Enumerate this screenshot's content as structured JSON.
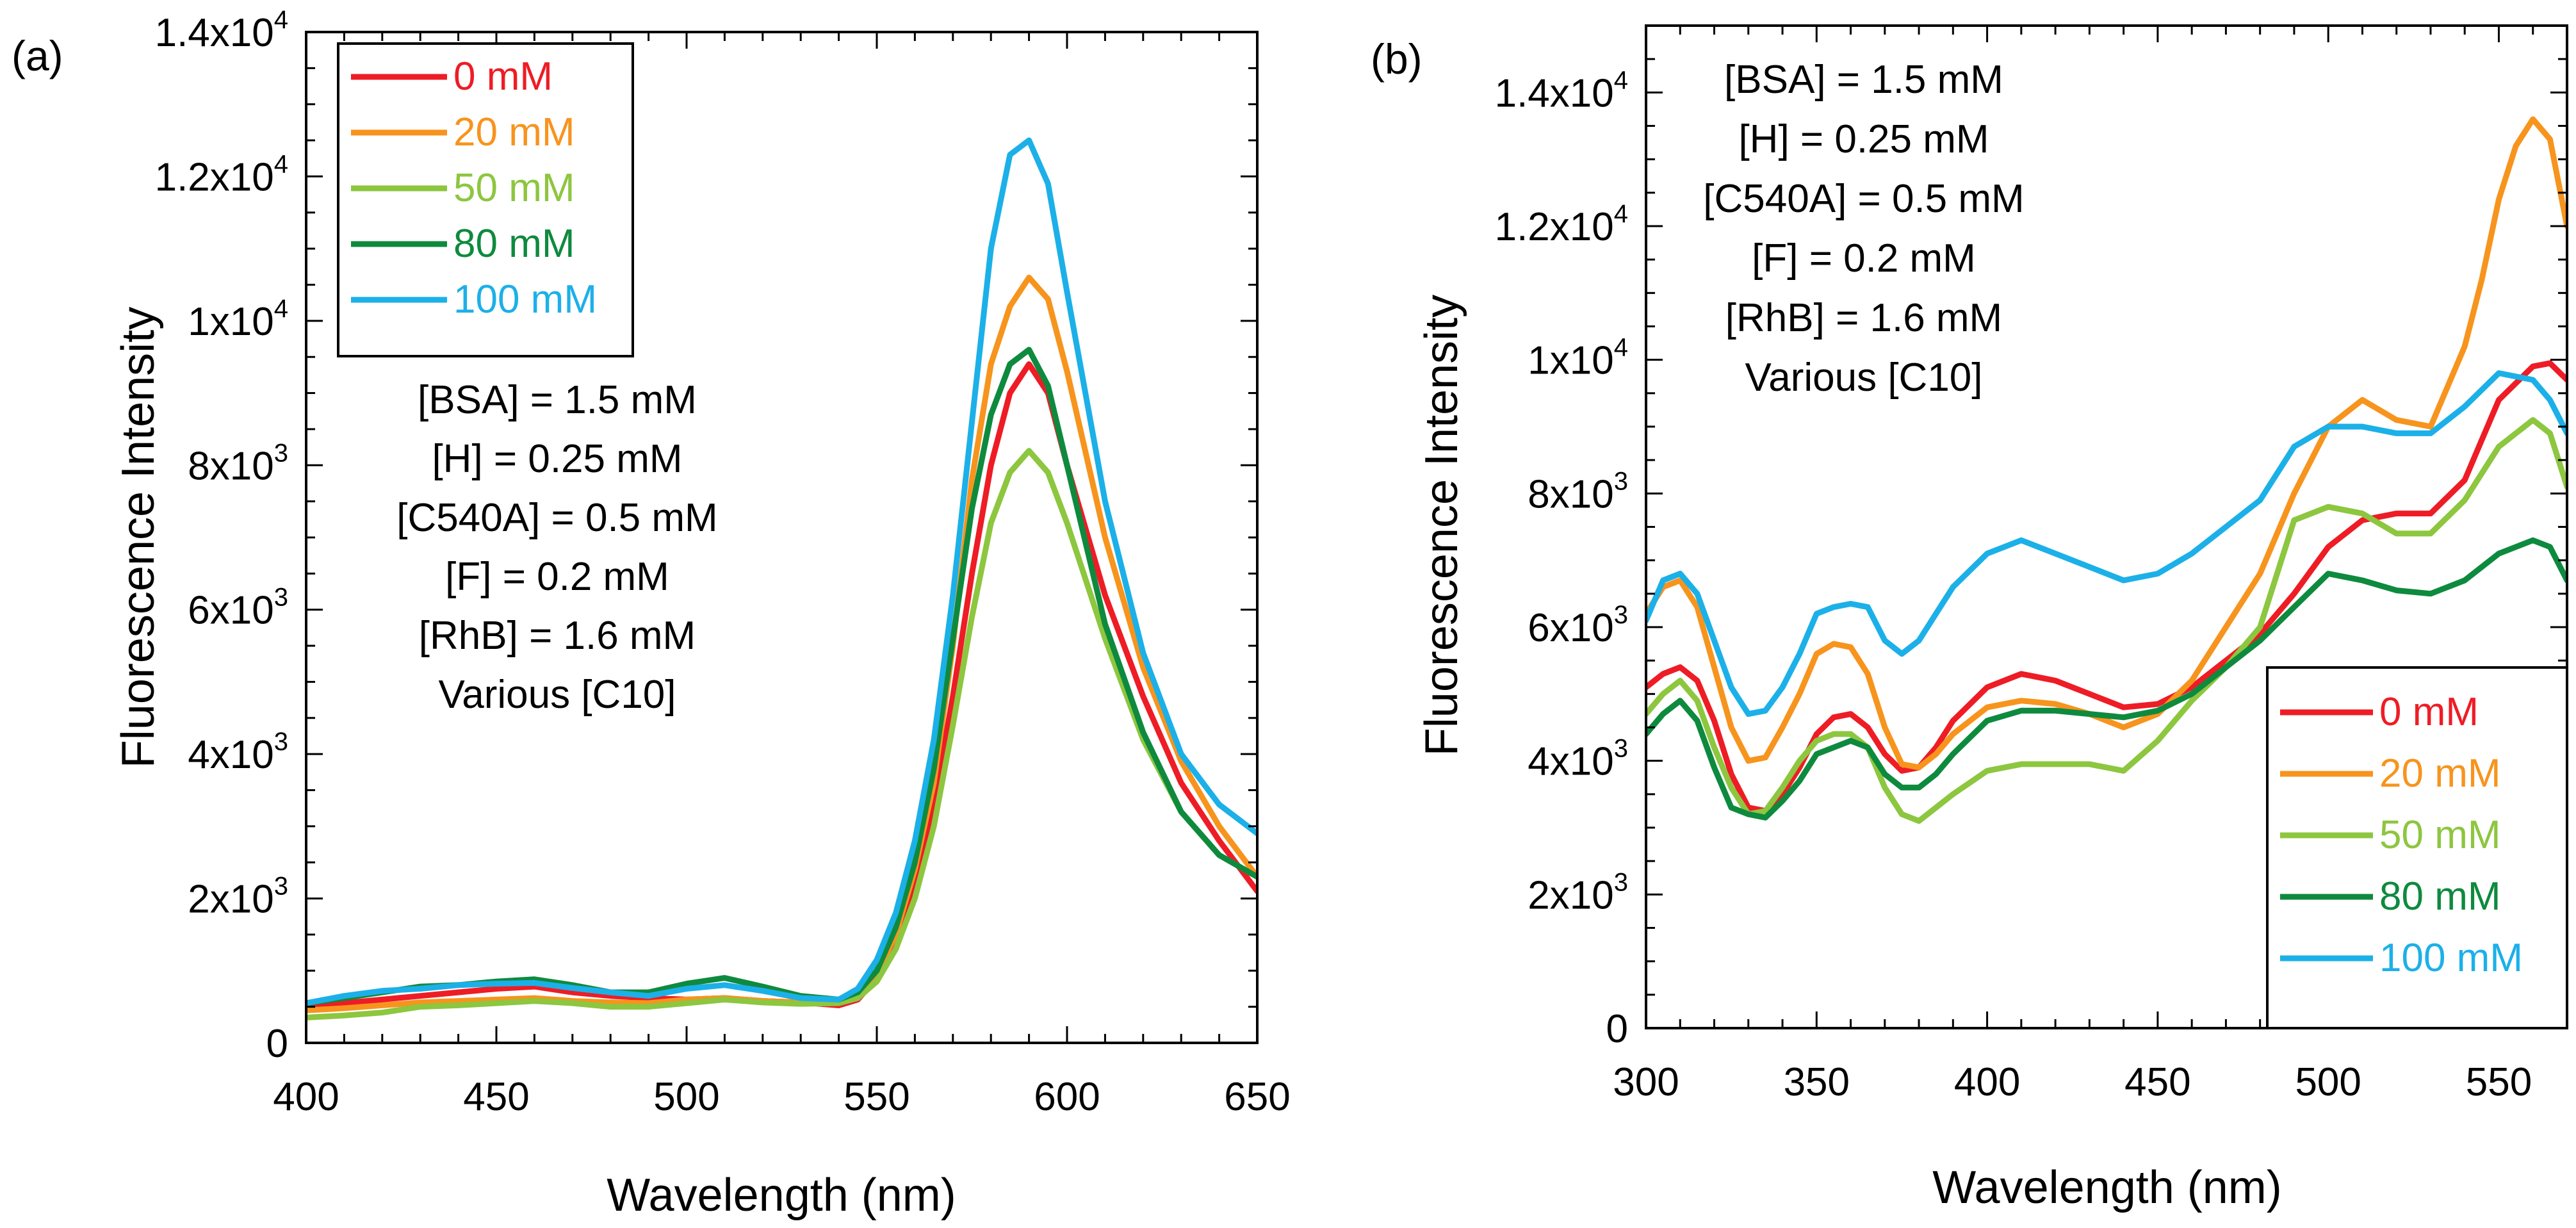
{
  "chart_data": [
    {
      "panel": "(a)",
      "type": "line",
      "title": "",
      "xlabel": "Wavelength (nm)",
      "ylabel": "Fluorescence Intensity",
      "xlim": [
        400,
        650
      ],
      "ylim": [
        0,
        14000
      ],
      "xticks": [
        400,
        450,
        500,
        550,
        600,
        650
      ],
      "yticks": [
        {
          "value": 0,
          "base": "0",
          "exp": ""
        },
        {
          "value": 2000,
          "base": "2x10",
          "exp": "3"
        },
        {
          "value": 4000,
          "base": "4x10",
          "exp": "3"
        },
        {
          "value": 6000,
          "base": "6x10",
          "exp": "3"
        },
        {
          "value": 8000,
          "base": "8x10",
          "exp": "3"
        },
        {
          "value": 10000,
          "base": "1x10",
          "exp": "4"
        },
        {
          "value": 12000,
          "base": "1.2x10",
          "exp": "4"
        },
        {
          "value": 14000,
          "base": "1.4x10",
          "exp": "4"
        }
      ],
      "legend_position": "top-left",
      "annotation": [
        "[BSA] = 1.5 mM",
        "[H] = 0.25 mM",
        "[C540A] = 0.5 mM",
        "[F] = 0.2 mM",
        "[RhB] = 1.6 mM",
        "Various [C10]"
      ],
      "series": [
        {
          "name": "0 mM",
          "color": "#ee1c25",
          "x": [
            400,
            410,
            420,
            430,
            440,
            450,
            460,
            470,
            480,
            490,
            500,
            510,
            520,
            530,
            540,
            545,
            550,
            555,
            560,
            565,
            570,
            575,
            580,
            585,
            590,
            595,
            600,
            610,
            620,
            630,
            640,
            650
          ],
          "y": [
            500,
            550,
            600,
            650,
            700,
            750,
            780,
            700,
            650,
            620,
            600,
            620,
            580,
            560,
            520,
            600,
            900,
            1400,
            2200,
            3300,
            4800,
            6500,
            8000,
            9000,
            9400,
            9000,
            8000,
            6200,
            4800,
            3600,
            2800,
            2100
          ]
        },
        {
          "name": "20 mM",
          "color": "#f7941d",
          "x": [
            400,
            410,
            420,
            430,
            440,
            450,
            460,
            470,
            480,
            490,
            500,
            510,
            520,
            530,
            540,
            545,
            550,
            555,
            560,
            565,
            570,
            575,
            580,
            585,
            590,
            595,
            600,
            610,
            620,
            630,
            640,
            650
          ],
          "y": [
            450,
            480,
            520,
            560,
            580,
            600,
            620,
            580,
            560,
            550,
            600,
            620,
            580,
            560,
            560,
            650,
            950,
            1500,
            2400,
            3600,
            5500,
            7800,
            9400,
            10200,
            10600,
            10300,
            9300,
            7000,
            5200,
            3900,
            3000,
            2300
          ]
        },
        {
          "name": "50 mM",
          "color": "#8dc63f",
          "x": [
            400,
            410,
            420,
            430,
            440,
            450,
            460,
            470,
            480,
            490,
            500,
            510,
            520,
            530,
            540,
            545,
            550,
            555,
            560,
            565,
            570,
            575,
            580,
            585,
            590,
            595,
            600,
            610,
            620,
            630,
            640,
            650
          ],
          "y": [
            350,
            380,
            420,
            500,
            520,
            550,
            580,
            550,
            500,
            500,
            550,
            600,
            560,
            540,
            550,
            620,
            850,
            1300,
            2000,
            3000,
            4400,
            5900,
            7200,
            7900,
            8200,
            7900,
            7200,
            5600,
            4200,
            3200,
            2600,
            2300
          ]
        },
        {
          "name": "80 mM",
          "color": "#0e8a3e",
          "x": [
            400,
            410,
            420,
            430,
            440,
            450,
            460,
            470,
            480,
            490,
            500,
            510,
            520,
            530,
            540,
            545,
            550,
            555,
            560,
            565,
            570,
            575,
            580,
            585,
            590,
            595,
            600,
            610,
            620,
            630,
            640,
            650
          ],
          "y": [
            550,
            620,
            700,
            780,
            800,
            850,
            880,
            800,
            700,
            700,
            820,
            900,
            780,
            650,
            600,
            700,
            1000,
            1600,
            2500,
            3800,
            5600,
            7400,
            8700,
            9400,
            9600,
            9100,
            8000,
            5800,
            4300,
            3200,
            2600,
            2300
          ]
        },
        {
          "name": "100 mM",
          "color": "#1cb0e8",
          "x": [
            400,
            410,
            420,
            430,
            440,
            450,
            460,
            470,
            480,
            490,
            500,
            510,
            520,
            530,
            540,
            545,
            550,
            555,
            560,
            565,
            570,
            575,
            580,
            585,
            590,
            595,
            600,
            610,
            620,
            630,
            640,
            650
          ],
          "y": [
            550,
            650,
            720,
            750,
            800,
            820,
            830,
            760,
            700,
            650,
            750,
            800,
            720,
            620,
            600,
            750,
            1150,
            1800,
            2800,
            4200,
            6200,
            8600,
            11000,
            12300,
            12500,
            11900,
            10400,
            7500,
            5400,
            4000,
            3300,
            2900
          ]
        }
      ]
    },
    {
      "panel": "(b)",
      "type": "line",
      "title": "",
      "xlabel": "Wavelength (nm)",
      "ylabel": "Fluorescence Intensity",
      "xlim": [
        300,
        570
      ],
      "ylim": [
        0,
        15000
      ],
      "xticks": [
        300,
        350,
        400,
        450,
        500,
        550
      ],
      "yticks": [
        {
          "value": 0,
          "base": "0",
          "exp": ""
        },
        {
          "value": 2000,
          "base": "2x10",
          "exp": "3"
        },
        {
          "value": 4000,
          "base": "4x10",
          "exp": "3"
        },
        {
          "value": 6000,
          "base": "6x10",
          "exp": "3"
        },
        {
          "value": 8000,
          "base": "8x10",
          "exp": "3"
        },
        {
          "value": 10000,
          "base": "1x10",
          "exp": "4"
        },
        {
          "value": 12000,
          "base": "1.2x10",
          "exp": "4"
        },
        {
          "value": 14000,
          "base": "1.4x10",
          "exp": "4"
        }
      ],
      "legend_position": "bottom-right",
      "annotation": [
        "[BSA] = 1.5 mM",
        "[H] = 0.25 mM",
        "[C540A] = 0.5 mM",
        "[F] = 0.2 mM",
        "[RhB] = 1.6 mM",
        "Various [C10]"
      ],
      "series": [
        {
          "name": "0 mM",
          "color": "#ee1c25",
          "x": [
            300,
            305,
            310,
            315,
            320,
            325,
            330,
            335,
            340,
            345,
            350,
            355,
            360,
            365,
            370,
            375,
            380,
            385,
            390,
            400,
            410,
            420,
            430,
            440,
            450,
            460,
            470,
            480,
            490,
            500,
            510,
            520,
            530,
            540,
            550,
            560,
            565,
            570
          ],
          "y": [
            5100,
            5300,
            5400,
            5200,
            4600,
            3800,
            3300,
            3250,
            3500,
            3900,
            4400,
            4650,
            4700,
            4500,
            4100,
            3850,
            3900,
            4200,
            4600,
            5100,
            5300,
            5200,
            5000,
            4800,
            4850,
            5100,
            5500,
            5900,
            6500,
            7200,
            7600,
            7700,
            7700,
            8200,
            9400,
            9900,
            9950,
            9700
          ]
        },
        {
          "name": "20 mM",
          "color": "#f7941d",
          "x": [
            300,
            305,
            310,
            315,
            320,
            325,
            330,
            335,
            340,
            345,
            350,
            355,
            360,
            365,
            370,
            375,
            380,
            385,
            390,
            400,
            410,
            420,
            430,
            440,
            450,
            460,
            470,
            480,
            490,
            500,
            510,
            520,
            530,
            540,
            545,
            550,
            555,
            560,
            565,
            570
          ],
          "y": [
            6200,
            6600,
            6700,
            6300,
            5400,
            4500,
            4000,
            4050,
            4500,
            5000,
            5600,
            5750,
            5700,
            5300,
            4500,
            3950,
            3900,
            4100,
            4400,
            4800,
            4900,
            4850,
            4700,
            4500,
            4700,
            5200,
            6000,
            6800,
            8000,
            9000,
            9400,
            9100,
            9000,
            10200,
            11200,
            12400,
            13200,
            13600,
            13300,
            12000
          ]
        },
        {
          "name": "50 mM",
          "color": "#8dc63f",
          "x": [
            300,
            305,
            310,
            315,
            320,
            325,
            330,
            335,
            340,
            345,
            350,
            355,
            360,
            365,
            370,
            375,
            380,
            385,
            390,
            400,
            410,
            420,
            430,
            440,
            450,
            460,
            470,
            480,
            490,
            500,
            510,
            520,
            530,
            540,
            550,
            560,
            565,
            570
          ],
          "y": [
            4700,
            5000,
            5200,
            4900,
            4200,
            3600,
            3200,
            3250,
            3600,
            4000,
            4300,
            4400,
            4400,
            4200,
            3600,
            3200,
            3100,
            3300,
            3500,
            3850,
            3950,
            3950,
            3950,
            3850,
            4300,
            4900,
            5400,
            6000,
            7600,
            7800,
            7700,
            7400,
            7400,
            7900,
            8700,
            9100,
            8900,
            8100
          ]
        },
        {
          "name": "80 mM",
          "color": "#0e8a3e",
          "x": [
            300,
            305,
            310,
            315,
            320,
            325,
            330,
            335,
            340,
            345,
            350,
            355,
            360,
            365,
            370,
            375,
            380,
            385,
            390,
            400,
            410,
            420,
            430,
            440,
            450,
            460,
            470,
            480,
            490,
            500,
            510,
            520,
            530,
            540,
            550,
            560,
            565,
            570
          ],
          "y": [
            4400,
            4700,
            4900,
            4600,
            3900,
            3300,
            3200,
            3150,
            3400,
            3700,
            4100,
            4200,
            4300,
            4200,
            3800,
            3600,
            3600,
            3800,
            4100,
            4600,
            4750,
            4750,
            4700,
            4650,
            4750,
            5000,
            5400,
            5800,
            6300,
            6800,
            6700,
            6550,
            6500,
            6700,
            7100,
            7300,
            7200,
            6700
          ]
        },
        {
          "name": "100 mM",
          "color": "#1cb0e8",
          "x": [
            300,
            305,
            310,
            315,
            320,
            325,
            330,
            335,
            340,
            345,
            350,
            355,
            360,
            365,
            370,
            375,
            380,
            385,
            390,
            400,
            410,
            420,
            430,
            440,
            450,
            460,
            470,
            480,
            490,
            500,
            510,
            520,
            530,
            540,
            550,
            560,
            565,
            570
          ],
          "y": [
            6100,
            6700,
            6800,
            6500,
            5800,
            5100,
            4700,
            4750,
            5100,
            5600,
            6200,
            6300,
            6350,
            6300,
            5800,
            5600,
            5800,
            6200,
            6600,
            7100,
            7300,
            7100,
            6900,
            6700,
            6800,
            7100,
            7500,
            7900,
            8700,
            9000,
            9000,
            8900,
            8900,
            9300,
            9800,
            9700,
            9400,
            8900
          ]
        }
      ]
    }
  ]
}
